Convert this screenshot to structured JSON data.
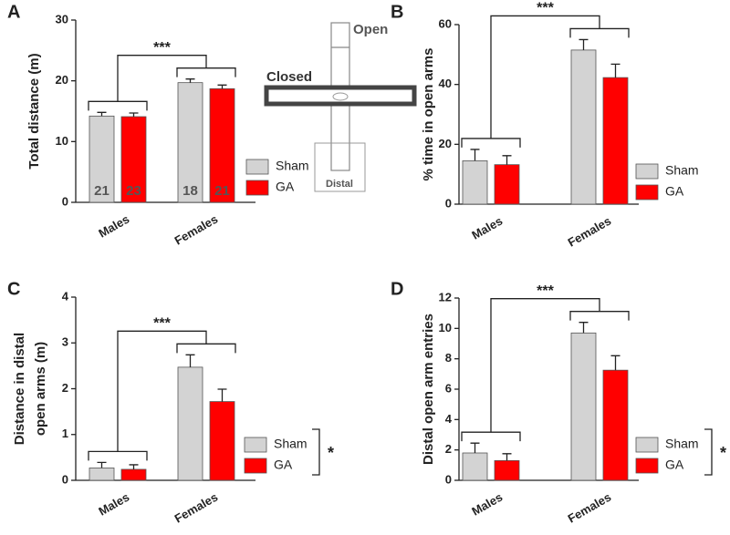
{
  "maze": {
    "open": "Open",
    "closed": "Closed",
    "distal": "Distal"
  },
  "chart_data": [
    {
      "type": "bar",
      "panel": "A",
      "ylabel": [
        "Total distance (m)"
      ],
      "categories": [
        "Males",
        "Females"
      ],
      "series": [
        {
          "name": "Sham",
          "color": "#d3d3d3",
          "values": [
            14.2,
            19.7
          ],
          "errors": [
            0.6,
            0.6
          ],
          "n": [
            "21",
            "18"
          ]
        },
        {
          "name": "GA",
          "color": "#ff0000",
          "values": [
            14.1,
            18.7
          ],
          "errors": [
            0.6,
            0.6
          ],
          "n": [
            "23",
            "21"
          ]
        }
      ],
      "ylim": [
        0,
        30
      ],
      "yticks": [
        0,
        10,
        20,
        30
      ],
      "group_sig": "***",
      "legend": "right"
    },
    {
      "type": "bar",
      "panel": "B",
      "ylabel": [
        "% time in open arms"
      ],
      "categories": [
        "Males",
        "Females"
      ],
      "series": [
        {
          "name": "Sham",
          "color": "#d3d3d3",
          "values": [
            14.5,
            51.5
          ],
          "errors": [
            3.8,
            3.5
          ]
        },
        {
          "name": "GA",
          "color": "#ff0000",
          "values": [
            13.2,
            42.3
          ],
          "errors": [
            3.0,
            4.5
          ]
        }
      ],
      "ylim": [
        0,
        60
      ],
      "yticks": [
        0,
        20,
        40,
        60
      ],
      "group_sig": "***",
      "legend": "right"
    },
    {
      "type": "bar",
      "panel": "C",
      "ylabel": [
        "Distance in distal",
        "open arms (m)"
      ],
      "categories": [
        "Males",
        "Females"
      ],
      "series": [
        {
          "name": "Sham",
          "color": "#d3d3d3",
          "values": [
            0.27,
            2.47
          ],
          "errors": [
            0.12,
            0.27
          ]
        },
        {
          "name": "GA",
          "color": "#ff0000",
          "values": [
            0.24,
            1.72
          ],
          "errors": [
            0.1,
            0.27
          ]
        }
      ],
      "ylim": [
        0,
        4
      ],
      "yticks": [
        0,
        1,
        2,
        3,
        4
      ],
      "group_sig": "***",
      "treatment_sig": "*",
      "legend": "right"
    },
    {
      "type": "bar",
      "panel": "D",
      "ylabel": [
        "Distal open arm entries"
      ],
      "categories": [
        "Males",
        "Females"
      ],
      "series": [
        {
          "name": "Sham",
          "color": "#d3d3d3",
          "values": [
            1.8,
            9.7
          ],
          "errors": [
            0.65,
            0.7
          ]
        },
        {
          "name": "GA",
          "color": "#ff0000",
          "values": [
            1.3,
            7.25
          ],
          "errors": [
            0.45,
            0.95
          ]
        }
      ],
      "ylim": [
        0,
        12
      ],
      "yticks": [
        0,
        2,
        4,
        6,
        8,
        10,
        12
      ],
      "group_sig": "***",
      "treatment_sig": "*",
      "legend": "right"
    }
  ]
}
